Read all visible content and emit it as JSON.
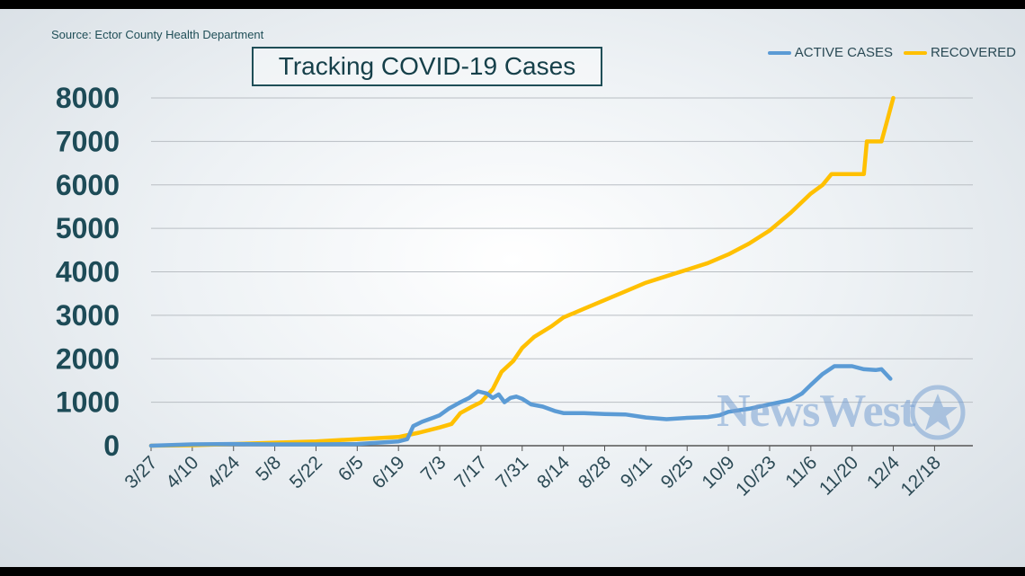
{
  "source": "Source: Ector County Health Department",
  "watermark": "NewsWest",
  "chart_data": {
    "type": "line",
    "title": "Tracking COVID-19 Cases",
    "xlabel": "",
    "ylabel": "",
    "x_ticks": [
      "3/27",
      "4/10",
      "4/24",
      "5/8",
      "5/22",
      "6/5",
      "6/19",
      "7/3",
      "7/17",
      "7/31",
      "8/14",
      "8/28",
      "9/11",
      "9/25",
      "10/9",
      "10/23",
      "11/6",
      "11/20",
      "12/4",
      "12/18"
    ],
    "x_range": [
      "3/27",
      "12/31"
    ],
    "ylim": [
      0,
      8000
    ],
    "y_ticks": [
      0,
      1000,
      2000,
      3000,
      4000,
      5000,
      6000,
      7000,
      8000
    ],
    "grid": true,
    "legend_position": "top-right",
    "series": [
      {
        "name": "ACTIVE CASES",
        "color": "#5b9bd5",
        "points": [
          [
            "3/27",
            0
          ],
          [
            "4/10",
            30
          ],
          [
            "4/24",
            40
          ],
          [
            "5/8",
            30
          ],
          [
            "5/22",
            30
          ],
          [
            "6/5",
            40
          ],
          [
            "6/19",
            100
          ],
          [
            "6/22",
            150
          ],
          [
            "6/24",
            450
          ],
          [
            "6/27",
            550
          ],
          [
            "7/1",
            650
          ],
          [
            "7/3",
            700
          ],
          [
            "7/6",
            850
          ],
          [
            "7/10",
            1000
          ],
          [
            "7/13",
            1100
          ],
          [
            "7/16",
            1250
          ],
          [
            "7/19",
            1200
          ],
          [
            "7/21",
            1100
          ],
          [
            "7/23",
            1180
          ],
          [
            "7/25",
            1000
          ],
          [
            "7/27",
            1100
          ],
          [
            "7/29",
            1130
          ],
          [
            "7/31",
            1080
          ],
          [
            "8/3",
            950
          ],
          [
            "8/7",
            900
          ],
          [
            "8/11",
            800
          ],
          [
            "8/14",
            750
          ],
          [
            "8/21",
            750
          ],
          [
            "8/28",
            730
          ],
          [
            "9/4",
            720
          ],
          [
            "9/11",
            650
          ],
          [
            "9/18",
            610
          ],
          [
            "9/25",
            640
          ],
          [
            "10/2",
            660
          ],
          [
            "10/6",
            700
          ],
          [
            "10/9",
            780
          ],
          [
            "10/16",
            850
          ],
          [
            "10/23",
            950
          ],
          [
            "10/30",
            1050
          ],
          [
            "11/3",
            1200
          ],
          [
            "11/6",
            1400
          ],
          [
            "11/10",
            1650
          ],
          [
            "11/14",
            1830
          ],
          [
            "11/20",
            1830
          ],
          [
            "11/24",
            1760
          ],
          [
            "11/28",
            1740
          ],
          [
            "11/30",
            1760
          ],
          [
            "12/3",
            1540
          ]
        ]
      },
      {
        "name": "RECOVERED",
        "color": "#ffc000",
        "points": [
          [
            "3/27",
            0
          ],
          [
            "4/10",
            10
          ],
          [
            "4/24",
            40
          ],
          [
            "5/8",
            70
          ],
          [
            "5/22",
            100
          ],
          [
            "6/5",
            150
          ],
          [
            "6/19",
            200
          ],
          [
            "6/26",
            300
          ],
          [
            "7/3",
            420
          ],
          [
            "7/7",
            500
          ],
          [
            "7/10",
            750
          ],
          [
            "7/14",
            900
          ],
          [
            "7/17",
            1000
          ],
          [
            "7/21",
            1300
          ],
          [
            "7/24",
            1700
          ],
          [
            "7/28",
            1950
          ],
          [
            "7/31",
            2250
          ],
          [
            "8/4",
            2500
          ],
          [
            "8/10",
            2750
          ],
          [
            "8/14",
            2950
          ],
          [
            "8/21",
            3150
          ],
          [
            "8/28",
            3350
          ],
          [
            "9/4",
            3550
          ],
          [
            "9/11",
            3750
          ],
          [
            "9/18",
            3900
          ],
          [
            "9/25",
            4050
          ],
          [
            "10/2",
            4200
          ],
          [
            "10/9",
            4400
          ],
          [
            "10/16",
            4650
          ],
          [
            "10/23",
            4950
          ],
          [
            "10/30",
            5350
          ],
          [
            "11/6",
            5800
          ],
          [
            "11/10",
            6000
          ],
          [
            "11/13",
            6250
          ],
          [
            "11/20",
            6250
          ],
          [
            "11/24",
            6250
          ],
          [
            "11/25",
            7000
          ],
          [
            "11/28",
            7000
          ],
          [
            "11/30",
            7000
          ],
          [
            "12/2",
            7500
          ],
          [
            "12/4",
            8000
          ]
        ]
      }
    ]
  }
}
